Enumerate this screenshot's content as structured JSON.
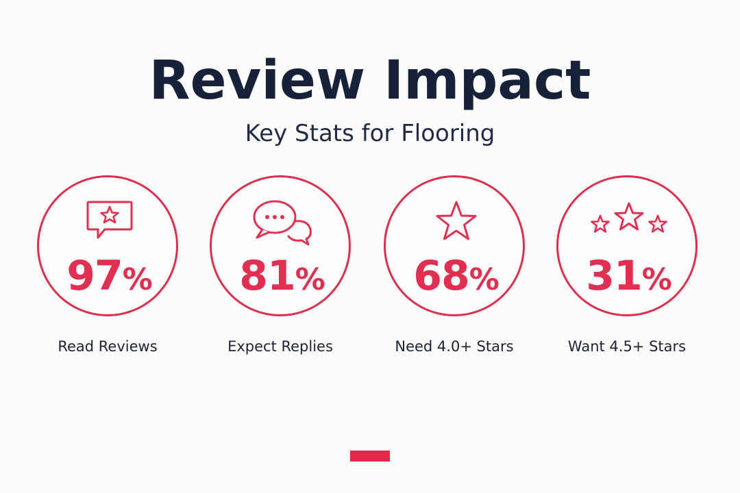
{
  "header": {
    "title": "Review Impact",
    "subtitle": "Key Stats for Flooring"
  },
  "colors": {
    "accent": "#e02f50",
    "ink": "#172138",
    "background": "#fcfcfc"
  },
  "stats": [
    {
      "icon": "star-speech-bubble-icon",
      "value": "97",
      "unit": "%",
      "label": "Read Reviews"
    },
    {
      "icon": "chat-bubbles-icon",
      "value": "81",
      "unit": "%",
      "label": "Expect Replies"
    },
    {
      "icon": "star-icon",
      "value": "68",
      "unit": "%",
      "label": "Need 4.0+ Stars"
    },
    {
      "icon": "three-stars-icon",
      "value": "31",
      "unit": "%",
      "label": "Want 4.5+ Stars"
    }
  ]
}
